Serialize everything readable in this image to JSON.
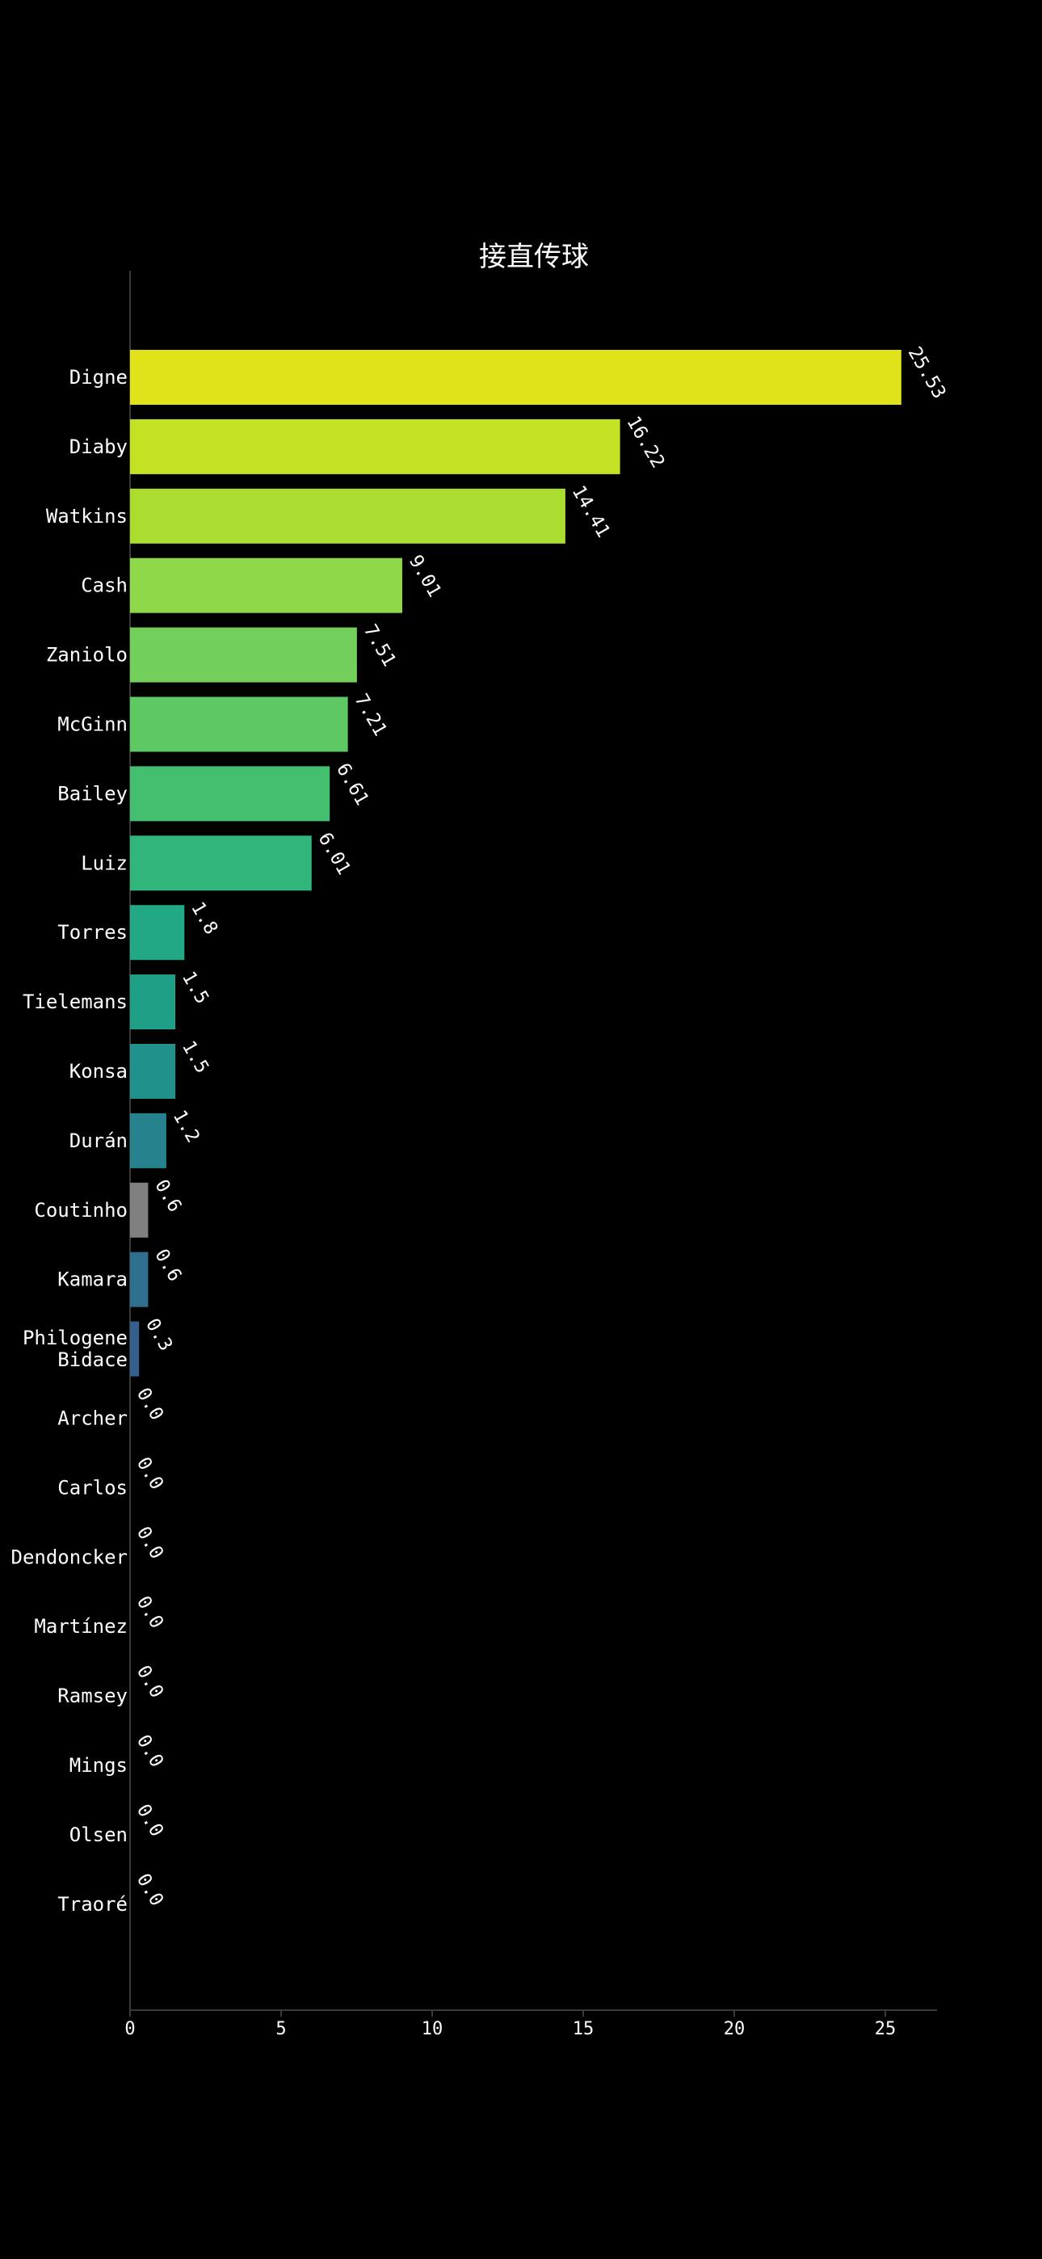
{
  "chart_data": {
    "type": "bar",
    "orientation": "horizontal",
    "title": "接直传球",
    "xlabel": "",
    "ylabel": "",
    "xlim": [
      0,
      26.8
    ],
    "x_ticks": [
      0,
      5,
      10,
      15,
      20,
      25
    ],
    "grid": false,
    "categories": [
      "Digne",
      "Diaby",
      "Watkins",
      "Cash",
      "Zaniolo",
      "McGinn",
      "Bailey",
      "Luiz",
      "Torres",
      "Tielemans",
      "Konsa",
      "Durán",
      "Coutinho",
      "Kamara",
      "Philogene\nBidace",
      "Archer",
      "Carlos",
      "Dendoncker",
      "Martínez",
      "Ramsey",
      "Mings",
      "Olsen",
      "Traoré"
    ],
    "values": [
      25.53,
      16.22,
      14.41,
      9.01,
      7.51,
      7.21,
      6.61,
      6.01,
      1.8,
      1.5,
      1.5,
      1.2,
      0.6,
      0.6,
      0.3,
      0.0,
      0.0,
      0.0,
      0.0,
      0.0,
      0.0,
      0.0,
      0.0
    ],
    "value_labels": [
      "25.53",
      "16.22",
      "14.41",
      "9.01",
      "7.51",
      "7.21",
      "6.61",
      "6.01",
      "1.8",
      "1.5",
      "1.5",
      "1.2",
      "0.6",
      "0.6",
      "0.3",
      "0.0",
      "0.0",
      "0.0",
      "0.0",
      "0.0",
      "0.0",
      "0.0",
      "0.0"
    ],
    "colors": [
      "#e0e31a",
      "#c5e124",
      "#aadd2f",
      "#8ed84a",
      "#72cf59",
      "#5ec962",
      "#44bf70",
      "#31b57b",
      "#22a884",
      "#1fa086",
      "#21918c",
      "#26838e",
      "#808080",
      "#2e6e8e",
      "#355f8d",
      "#3a528b",
      "#414487",
      "#453681",
      "#472878",
      "#481a6c",
      "#470c5f",
      "#450559",
      "#440154"
    ]
  }
}
